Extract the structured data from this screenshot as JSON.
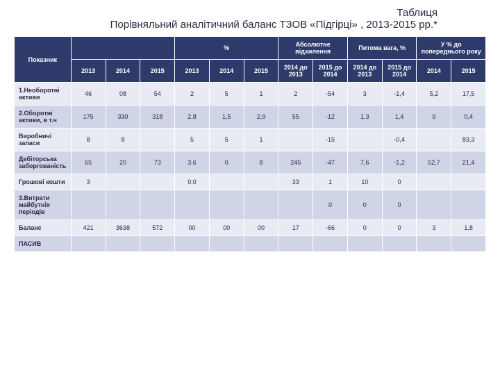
{
  "title": {
    "line1": "Таблиця",
    "line2": "Порівняльний аналітичний баланс ТЗОВ «Підгірці» , 2013-2015 рр.*"
  },
  "header": {
    "indicator": "Показник",
    "group_blank": "",
    "group_percent": "%",
    "group_absdev": "Абсолютне відхилення",
    "group_weight": "Питома вага, %",
    "group_toprev": "У % до попереднього року",
    "sub": {
      "y2013": "2013",
      "y2014": "2014",
      "y2015": "2015",
      "p2013": "2013",
      "p2014": "2014",
      "p2015": "2015",
      "ad1": "2014 до 2013",
      "ad2": "2015 до 2014",
      "wt1": "2014 до 2013",
      "wt2": "2015 до 2014",
      "tp1": "2014",
      "tp2": "2015"
    }
  },
  "rows": {
    "r1": {
      "label": "1.Необоротні активи",
      "c1": "46",
      "c2": "08",
      "c3": "54",
      "c4": "2",
      "c5": "5",
      "c6": "1",
      "c7": "2",
      "c8": "-54",
      "c9": "3",
      "c10": "-1,4",
      "c11": "5,2",
      "c12": "17,5"
    },
    "r2": {
      "label": "2.Оборотні активи, в т.ч",
      "c1": "175",
      "c2": "330",
      "c3": "318",
      "c4": "2,8",
      "c5": "1,5",
      "c6": "2,9",
      "c7": "55",
      "c8": "-12",
      "c9": "1,3",
      "c10": "1,4",
      "c11": "9",
      "c12": "0,4"
    },
    "r3": {
      "label": "Виробничі запаси",
      "c1": "8",
      "c2": "8",
      "c3": "",
      "c4": "5",
      "c5": "5",
      "c6": "1",
      "c7": "",
      "c8": "-15",
      "c9": "",
      "c10": "-0,4",
      "c11": "",
      "c12": "83,3"
    },
    "r4": {
      "label": "Дебіторська заборгованість",
      "c1": "65",
      "c2": "20",
      "c3": "73",
      "c4": "3,6",
      "c5": "0",
      "c6": "8",
      "c7": "245",
      "c8": "-47",
      "c9": "7,6",
      "c10": "-1,2",
      "c11": "52,7",
      "c12": "21,4"
    },
    "r5": {
      "label": "Грошові кошти",
      "c1": "3",
      "c2": "",
      "c3": "",
      "c4": "0,0",
      "c5": "",
      "c6": "",
      "c7": "33",
      "c8": "1",
      "c9": "10",
      "c10": "0",
      "c11": "",
      "c12": ""
    },
    "r6": {
      "label": "3.Витрати майбутніх періодів",
      "c1": "",
      "c2": "",
      "c3": "",
      "c4": "",
      "c5": "",
      "c6": "",
      "c7": "",
      "c8": "0",
      "c9": "0",
      "c10": "0",
      "c11": "",
      "c12": ""
    },
    "r7": {
      "label": "Баланс",
      "c1": "421",
      "c2": "3638",
      "c3": "572",
      "c4": "00",
      "c5": "00",
      "c6": "00",
      "c7": "17",
      "c8": "-66",
      "c9": "0",
      "c10": "0",
      "c11": "3",
      "c12": "1,8"
    },
    "r8": {
      "label": "ПАСИВ",
      "c1": "",
      "c2": "",
      "c3": "",
      "c4": "",
      "c5": "",
      "c6": "",
      "c7": "",
      "c8": "",
      "c9": "",
      "c10": "",
      "c11": "",
      "c12": ""
    }
  },
  "style": {
    "header_bg": "#2e3a6a",
    "header_fg": "#ffffff",
    "row_odd_bg": "#e8ebf3",
    "row_even_bg": "#cfd5e6",
    "text_color": "#2a2a40",
    "title_fontsize": 15,
    "cell_fontsize": 9
  }
}
